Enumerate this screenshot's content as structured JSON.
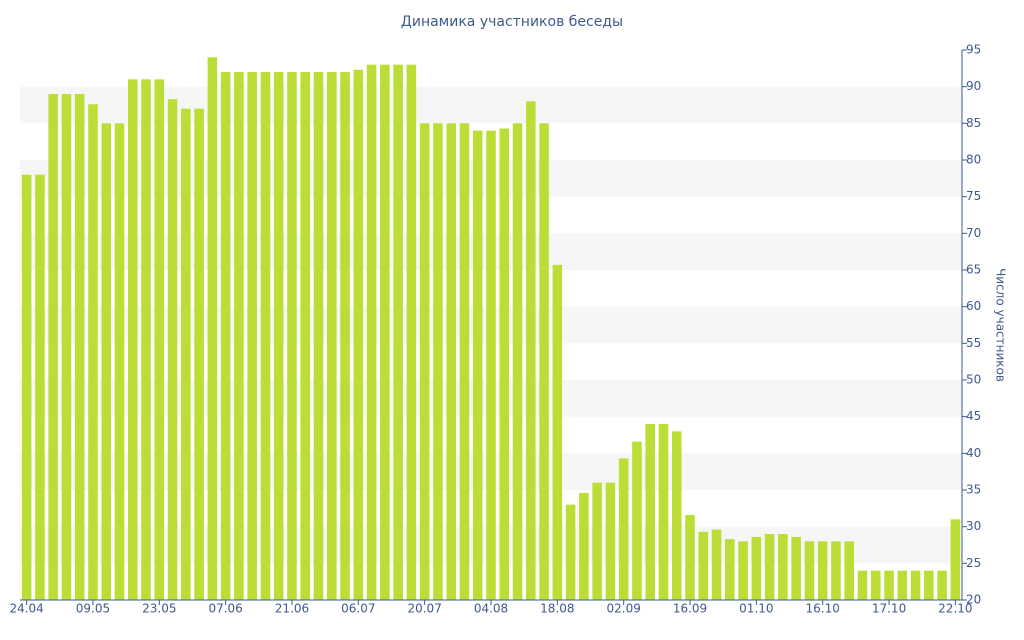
{
  "chart_data": {
    "type": "bar",
    "title": "Динамика участников беседы",
    "y_label": "Число участников",
    "categories": [
      "24.04",
      null,
      null,
      null,
      null,
      "09.05",
      null,
      null,
      null,
      null,
      "23.05",
      null,
      null,
      null,
      null,
      "07.06",
      null,
      null,
      null,
      null,
      "21.06",
      null,
      null,
      null,
      null,
      "06.07",
      null,
      null,
      null,
      null,
      "20.07",
      null,
      null,
      null,
      null,
      "04.08",
      null,
      null,
      null,
      null,
      "18.08",
      null,
      null,
      null,
      null,
      "02.09",
      null,
      null,
      null,
      null,
      "16.09",
      null,
      null,
      null,
      null,
      "01.10",
      null,
      null,
      null,
      null,
      "16.10",
      null,
      null,
      null,
      null,
      "17.10",
      null,
      null,
      null,
      null,
      "22.10"
    ],
    "values": [
      78,
      78,
      89,
      89,
      89,
      87.6,
      85,
      85,
      91,
      91,
      91,
      88.3,
      87,
      87,
      94,
      92,
      92,
      92,
      92,
      92,
      92,
      92,
      92,
      92,
      92,
      92.3,
      93,
      93,
      93,
      93,
      85,
      85,
      85,
      85,
      84,
      84,
      84.3,
      85,
      88,
      85,
      65.7,
      33,
      34.6,
      36,
      36,
      39.3,
      41.6,
      44,
      44,
      43,
      31.6,
      29.3,
      29.6,
      28.3,
      28,
      28.6,
      29,
      29,
      28.6,
      28,
      28,
      28,
      28,
      24,
      24,
      24,
      24,
      24,
      24,
      24,
      31
    ],
    "color": "#bade35",
    "ylim": [
      20,
      95
    ],
    "yticks": [
      20,
      25,
      30,
      35,
      40,
      45,
      50,
      55,
      60,
      65,
      70,
      75,
      80,
      85,
      90,
      95
    ],
    "y_axis_position": "right",
    "alternate_bands": true
  }
}
